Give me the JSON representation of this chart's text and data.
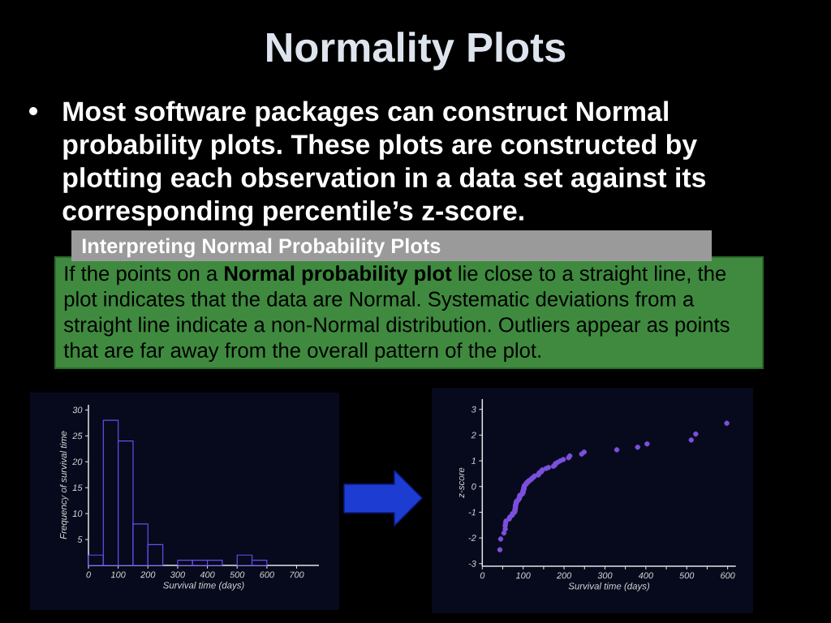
{
  "chart_data": [
    {
      "type": "other",
      "title": "Normality Plots",
      "annotations": [
        "Most software packages can construct Normal probability plots.  These plots are constructed by plotting each observation in a data set against its corresponding percentile’s z-score.",
        "Interpreting Normal Probability Plots",
        "If the points on a **Normal probability plot** lie close to a straight line, the plot indicates that the data are Normal. Systematic deviations from a straight line indicate a non-Normal distribution. Outliers appear as points that are far away from the overall pattern of the plot."
      ]
    },
    {
      "type": "histogram",
      "xlabel": "Survival time (days)",
      "ylabel": "Frequency of survival time",
      "bins": [
        0,
        50,
        100,
        150,
        200,
        250,
        300,
        350,
        400,
        450,
        500,
        550,
        600
      ],
      "values": [
        2,
        28,
        24,
        8,
        4,
        0,
        1,
        1,
        1,
        0,
        2,
        1
      ],
      "color": "#6a4cf0",
      "xlim": [
        0,
        775
      ],
      "ylim": [
        0,
        31
      ],
      "xticks": [
        0,
        100,
        200,
        300,
        400,
        500,
        600,
        700
      ],
      "yticks": [
        5,
        10,
        15,
        20,
        25,
        30
      ]
    },
    {
      "type": "scatter",
      "xlabel": "Survival time (days)",
      "ylabel": "z-score",
      "color": "#7b50dc",
      "marker": "circle",
      "x": [
        43,
        45,
        53,
        56,
        56,
        57,
        58,
        66,
        67,
        73,
        74,
        79,
        80,
        80,
        81,
        81,
        81,
        82,
        83,
        83,
        84,
        88,
        89,
        91,
        91,
        92,
        92,
        97,
        99,
        99,
        100,
        100,
        101,
        102,
        102,
        102,
        103,
        104,
        107,
        108,
        109,
        113,
        114,
        118,
        121,
        123,
        126,
        128,
        137,
        138,
        139,
        144,
        145,
        147,
        156,
        162,
        174,
        178,
        179,
        184,
        191,
        198,
        211,
        214,
        243,
        249,
        329,
        380,
        403,
        511,
        522,
        598
      ],
      "values": [
        -2.46,
        -2.04,
        -1.81,
        -1.66,
        -1.53,
        -1.43,
        -1.34,
        -1.26,
        -1.19,
        -1.12,
        -1.05,
        -1.0,
        -0.94,
        -0.89,
        -0.84,
        -0.79,
        -0.74,
        -0.7,
        -0.65,
        -0.61,
        -0.57,
        -0.53,
        -0.49,
        -0.45,
        -0.41,
        -0.37,
        -0.34,
        -0.3,
        -0.26,
        -0.23,
        -0.19,
        -0.16,
        -0.12,
        -0.09,
        -0.05,
        -0.02,
        0.02,
        0.05,
        0.09,
        0.12,
        0.16,
        0.19,
        0.23,
        0.26,
        0.3,
        0.34,
        0.37,
        0.41,
        0.45,
        0.49,
        0.53,
        0.57,
        0.61,
        0.65,
        0.7,
        0.74,
        0.79,
        0.84,
        0.89,
        0.94,
        1.0,
        1.05,
        1.12,
        1.19,
        1.26,
        1.34,
        1.43,
        1.53,
        1.66,
        1.81,
        2.04,
        2.46
      ],
      "xlim": [
        0,
        620
      ],
      "ylim": [
        -3.1,
        3.4
      ],
      "xticks": [
        0,
        {
          "value": 50,
          "label": null
        },
        100,
        {
          "value": 150,
          "label": null
        },
        200,
        {
          "value": 250,
          "label": null
        },
        300,
        {
          "value": 350,
          "label": null
        },
        400,
        {
          "value": 450,
          "label": null
        },
        500,
        {
          "value": 550,
          "label": null
        },
        600
      ],
      "yticks": [
        -3,
        -2,
        -1,
        0,
        1,
        2,
        3
      ]
    }
  ]
}
